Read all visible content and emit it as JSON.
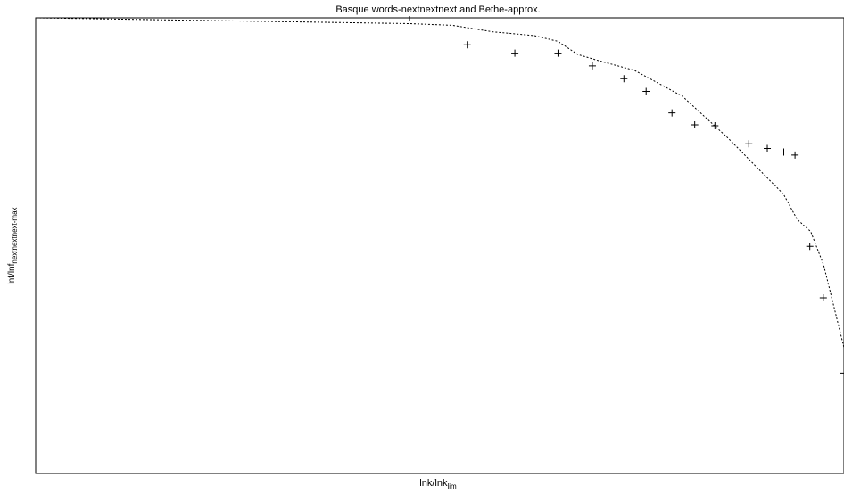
{
  "chart_data": {
    "type": "scatter",
    "title": "Basque words-nextnextnext and Bethe-approx.",
    "xlabel": {
      "main": "lnk/lnk",
      "sub": "lim"
    },
    "ylabel": {
      "main": "lnf/lnf",
      "sub": "nextnextnext-max"
    },
    "xlim": [
      0,
      1
    ],
    "ylim": [
      0,
      1
    ],
    "grid": false,
    "legend": "none",
    "series": [
      {
        "style": "points",
        "marker": "+",
        "x": [
          0.5339,
          0.5928,
          0.6462,
          0.6887,
          0.7277,
          0.7552,
          0.7872,
          0.8153,
          0.8403,
          0.8822,
          0.9051,
          0.9255,
          0.9394,
          0.9577,
          0.9744,
          1.0
        ],
        "y": [
          0.9407,
          0.9225,
          0.9225,
          0.8945,
          0.8665,
          0.8385,
          0.7914,
          0.7651,
          0.7631,
          0.7236,
          0.7133,
          0.7056,
          0.6989,
          0.4986,
          0.3856,
          0.2203
        ]
      },
      {
        "style": "dotted-line",
        "x": [
          0.0,
          0.4624,
          0.5154,
          0.5658,
          0.6171,
          0.6461,
          0.6706,
          0.6983,
          0.7407,
          0.8,
          0.8571,
          0.8945,
          0.9251,
          0.9421,
          0.9588,
          0.9748,
          1.0
        ],
        "y": [
          1.0,
          0.9873,
          0.9836,
          0.9692,
          0.9608,
          0.9484,
          0.9196,
          0.9051,
          0.8847,
          0.8279,
          0.7353,
          0.6678,
          0.6134,
          0.5578,
          0.5309,
          0.4576,
          0.2761
        ]
      }
    ]
  }
}
